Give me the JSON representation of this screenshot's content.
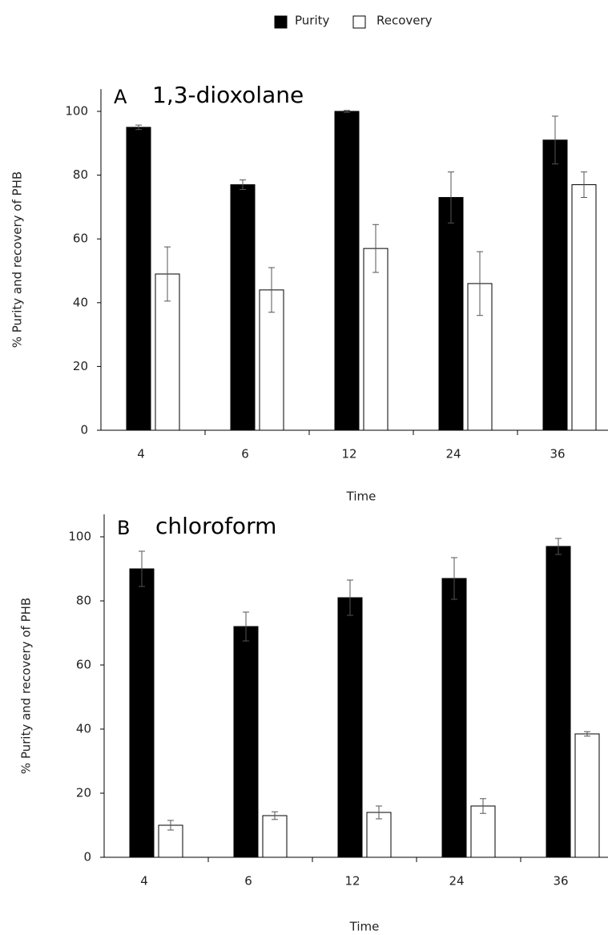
{
  "chart_data": [
    {
      "type": "bar",
      "panel_label": "A",
      "title": "1,3-dioxolane",
      "xlabel": "Time",
      "ylabel": "% Purity and recovery of PHB",
      "categories": [
        "4",
        "6",
        "12",
        "24",
        "36"
      ],
      "series": [
        {
          "name": "Purity",
          "color": "#000000",
          "values": [
            95,
            77,
            100,
            73,
            91
          ],
          "errors": [
            0.7,
            1.5,
            0.3,
            8,
            7.5
          ]
        },
        {
          "name": "Recovery",
          "color": "#ffffff",
          "values": [
            49,
            44,
            57,
            46,
            77
          ],
          "errors": [
            8.5,
            7,
            7.5,
            10,
            4
          ]
        }
      ],
      "ylim": [
        0,
        107
      ],
      "yticks": [
        0,
        20,
        40,
        60,
        80,
        100
      ]
    },
    {
      "type": "bar",
      "panel_label": "B",
      "title": "chloroform",
      "xlabel": "Time",
      "ylabel": "% Purity and recovery of PHB",
      "categories": [
        "4",
        "6",
        "12",
        "24",
        "36"
      ],
      "series": [
        {
          "color": "#000000",
          "values": [
            90,
            72,
            81,
            87,
            97
          ],
          "errors": [
            5.5,
            4.5,
            5.5,
            6.5,
            2.5
          ]
        },
        {
          "color": "#ffffff",
          "values": [
            10,
            13,
            14,
            16,
            38.5
          ],
          "errors": [
            1.5,
            1.2,
            2,
            2.3,
            0.7
          ]
        }
      ],
      "ylim": [
        0,
        107
      ],
      "yticks": [
        0,
        20,
        40,
        60,
        80,
        100
      ]
    }
  ]
}
